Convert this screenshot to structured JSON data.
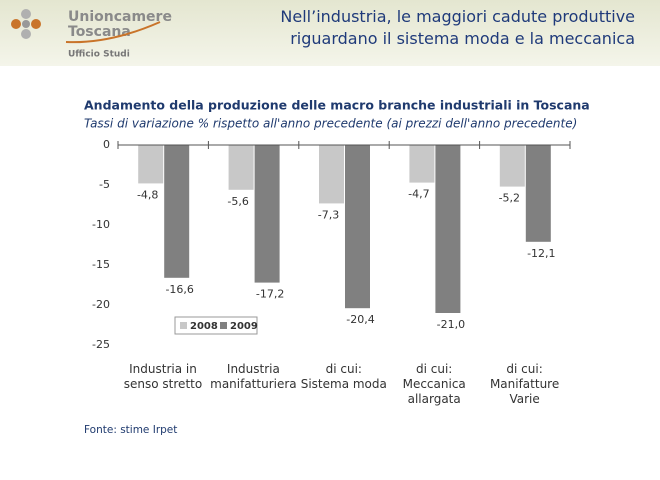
{
  "header": {
    "logo_name": "Unioncamere",
    "logo_region": "Toscana",
    "logo_office": "Ufficio Studi",
    "title": "Nell’industria, le maggiori cadute produttive riguardano il sistema moda e la meccanica"
  },
  "chart_data": {
    "type": "bar",
    "title": "Andamento della produzione delle macro branche industriali in Toscana",
    "subtitle": "Tassi di variazione % rispetto all'anno precedente (ai prezzi dell'anno precedente)",
    "categories": [
      "Industria in\nsenso stretto",
      "Industria\nmanifatturiera",
      "di cui:\nSistema moda",
      "di cui:\nMeccanica\nallargata",
      "di cui:\nManifatture\nVarie"
    ],
    "series": [
      {
        "name": "2008",
        "color": "#c8c8c8",
        "values": [
          -4.8,
          -5.6,
          -7.3,
          -4.7,
          -5.2
        ],
        "value_labels": [
          "-4,8",
          "-5,6",
          "-7,3",
          "-4,7",
          "-5,2"
        ]
      },
      {
        "name": "2009",
        "color": "#808080",
        "values": [
          -16.6,
          -17.2,
          -20.4,
          -21.0,
          -12.1
        ],
        "value_labels": [
          "-16,6",
          "-17,2",
          "-20,4",
          "-21,0",
          "-12,1"
        ]
      }
    ],
    "ylim": [
      -25,
      0
    ],
    "yticks": [
      0,
      -5,
      -10,
      -15,
      -20,
      -25
    ],
    "grid": false,
    "legend": "lower left",
    "source": "Fonte: stime Irpet"
  }
}
